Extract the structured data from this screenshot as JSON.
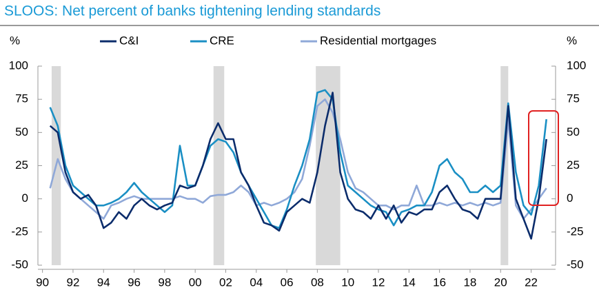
{
  "chart_data": {
    "type": "line",
    "title": "SLOOS: Net percent of banks tightening lending standards",
    "y_unit_label": "%",
    "y2_unit_label": "%",
    "x": [
      1990.5,
      1991,
      1991.5,
      1992,
      1992.5,
      1993,
      1993.5,
      1994,
      1994.5,
      1995,
      1995.5,
      1996,
      1996.5,
      1997,
      1997.5,
      1998,
      1998.5,
      1999,
      1999.5,
      2000,
      2000.5,
      2001,
      2001.5,
      2002,
      2002.5,
      2003,
      2003.5,
      2004,
      2004.5,
      2005,
      2005.5,
      2006,
      2006.5,
      2007,
      2007.5,
      2008,
      2008.5,
      2009,
      2009.5,
      2010,
      2010.5,
      2011,
      2011.5,
      2012,
      2012.5,
      2013,
      2013.5,
      2014,
      2014.5,
      2015,
      2015.5,
      2016,
      2016.5,
      2017,
      2017.5,
      2018,
      2018.5,
      2019,
      2019.5,
      2020,
      2020.5,
      2021,
      2021.5,
      2022,
      2022.5,
      2023
    ],
    "series": [
      {
        "name": "C&I",
        "color": "#0b2c6b",
        "values": [
          55,
          50,
          20,
          5,
          0,
          3,
          -5,
          -22,
          -18,
          -10,
          -15,
          -5,
          0,
          -5,
          -8,
          -5,
          -3,
          10,
          8,
          10,
          25,
          45,
          57,
          45,
          45,
          20,
          10,
          -5,
          -18,
          -20,
          -24,
          -10,
          -5,
          0,
          -3,
          20,
          55,
          80,
          20,
          0,
          -8,
          -10,
          -15,
          -5,
          -15,
          -5,
          -18,
          -10,
          -12,
          -8,
          -8,
          5,
          10,
          0,
          -8,
          -10,
          -15,
          0,
          0,
          0,
          70,
          0,
          -15,
          -30,
          0,
          45
        ]
      },
      {
        "name": "CRE",
        "color": "#1a8fc4",
        "values": [
          69,
          55,
          25,
          10,
          5,
          0,
          -5,
          -5,
          -3,
          0,
          5,
          12,
          5,
          0,
          -5,
          -10,
          -5,
          40,
          10,
          10,
          25,
          40,
          45,
          43,
          35,
          20,
          10,
          0,
          -10,
          -20,
          -22,
          -8,
          10,
          25,
          45,
          80,
          82,
          75,
          35,
          10,
          5,
          0,
          -5,
          -8,
          -10,
          -20,
          -10,
          -8,
          -5,
          -5,
          5,
          25,
          30,
          20,
          15,
          5,
          5,
          10,
          5,
          10,
          72,
          20,
          -5,
          -12,
          10,
          60
        ]
      },
      {
        "name": "Residential mortgages",
        "color": "#8fa8d8",
        "values": [
          8,
          30,
          15,
          5,
          0,
          -5,
          -10,
          -15,
          -5,
          -3,
          0,
          2,
          0,
          0,
          0,
          0,
          0,
          2,
          0,
          0,
          -3,
          2,
          3,
          3,
          5,
          10,
          5,
          -5,
          -3,
          -5,
          -3,
          0,
          5,
          15,
          40,
          70,
          75,
          65,
          45,
          20,
          8,
          5,
          0,
          -5,
          -5,
          -8,
          -5,
          -5,
          10,
          -5,
          -5,
          -3,
          -5,
          -3,
          -5,
          -3,
          -5,
          -3,
          -5,
          -3,
          60,
          -5,
          -15,
          -8,
          0,
          8
        ]
      }
    ],
    "recessions": [
      [
        1990.6,
        1991.2
      ],
      [
        2001.2,
        2001.9
      ],
      [
        2007.9,
        2009.5
      ],
      [
        2020.0,
        2020.5
      ]
    ],
    "recession_color": "#d9d9d9",
    "xlim": [
      1989.7,
      2023.6
    ],
    "xticks": [
      {
        "value": 1990,
        "label": "90"
      },
      {
        "value": 1992,
        "label": "92"
      },
      {
        "value": 1994,
        "label": "94"
      },
      {
        "value": 1996,
        "label": "96"
      },
      {
        "value": 1998,
        "label": "98"
      },
      {
        "value": 2000,
        "label": "00"
      },
      {
        "value": 2002,
        "label": "02"
      },
      {
        "value": 2004,
        "label": "04"
      },
      {
        "value": 2006,
        "label": "06"
      },
      {
        "value": 2008,
        "label": "08"
      },
      {
        "value": 2010,
        "label": "10"
      },
      {
        "value": 2012,
        "label": "12"
      },
      {
        "value": 2014,
        "label": "14"
      },
      {
        "value": 2016,
        "label": "16"
      },
      {
        "value": 2018,
        "label": "18"
      },
      {
        "value": 2020,
        "label": "20"
      },
      {
        "value": 2022,
        "label": "22"
      }
    ],
    "ylim": [
      -50,
      100
    ],
    "yticks": [
      -50,
      -25,
      0,
      25,
      50,
      75,
      100
    ],
    "y2lim": [
      -50,
      100
    ],
    "y2ticks": [
      -50,
      -25,
      0,
      25,
      50,
      75,
      100
    ],
    "grid": false
  }
}
